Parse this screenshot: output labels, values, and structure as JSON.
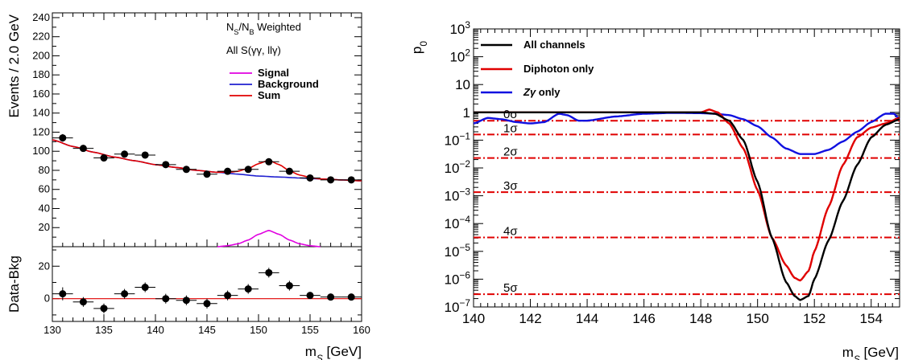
{
  "chart_data": [
    {
      "type": "scatter",
      "panel": "main",
      "info_lines": [
        "N_S/N_B Weighted",
        "All S(γγ, llγ)"
      ],
      "ylabel": "Events / 2.0 GeV",
      "xlabel": "",
      "xlim": [
        130,
        160
      ],
      "ylim": [
        0,
        245
      ],
      "yticks": [
        "20",
        "40",
        "60",
        "80",
        "100",
        "120",
        "140",
        "160",
        "180",
        "200",
        "220",
        "240"
      ],
      "legend_placement": "top-right",
      "series": [
        {
          "name": "Signal",
          "color": "#e000e0"
        },
        {
          "name": "Background",
          "color": "#2020d0"
        },
        {
          "name": "Sum",
          "color": "#e00000"
        }
      ],
      "data_points": {
        "x": [
          131,
          133,
          135,
          137,
          139,
          141,
          143,
          145,
          147,
          149,
          151,
          153,
          155,
          157,
          159
        ],
        "y": [
          114,
          103,
          93,
          97,
          96,
          86,
          81,
          76,
          79,
          81,
          89,
          79,
          72,
          70,
          70
        ],
        "err": [
          4,
          3,
          3,
          3,
          3,
          3,
          3,
          3,
          3,
          3,
          3,
          3,
          2,
          2,
          2
        ]
      },
      "background_curve": {
        "x": [
          130,
          132,
          134,
          136,
          138,
          140,
          142,
          144,
          146,
          148,
          150,
          152,
          154,
          156,
          158,
          160
        ],
        "y": [
          112,
          105,
          99,
          94,
          90,
          86,
          83,
          80,
          78,
          76,
          74,
          73,
          72,
          71,
          70,
          69
        ]
      },
      "signal_curve": {
        "x": [
          146,
          147,
          148,
          149,
          150,
          151,
          152,
          153,
          154,
          155,
          156
        ],
        "y": [
          0,
          1,
          3,
          7,
          13,
          17,
          13,
          7,
          3,
          1,
          0
        ]
      }
    },
    {
      "type": "scatter",
      "panel": "residual",
      "ylabel": "Data-Bkg",
      "xlabel": "m_S [GeV]",
      "xlim": [
        130,
        160
      ],
      "ylim": [
        -14,
        32
      ],
      "xticks": [
        "130",
        "135",
        "140",
        "145",
        "150",
        "155",
        "160"
      ],
      "yticks": [
        "0",
        "20"
      ],
      "x": [
        131,
        133,
        135,
        137,
        139,
        141,
        143,
        145,
        147,
        149,
        151,
        153,
        155,
        157,
        159
      ],
      "y": [
        3,
        -2,
        -6,
        3,
        7,
        0,
        -1,
        -3,
        2,
        6,
        16,
        8,
        2,
        1,
        1
      ],
      "err": [
        4,
        3,
        3,
        3,
        3,
        3,
        3,
        3,
        3,
        3,
        3,
        3,
        2,
        2,
        2
      ]
    },
    {
      "type": "line",
      "panel": "p0",
      "ylabel": "p_0",
      "xlabel": "m_S [GeV]",
      "xlim": [
        140,
        155
      ],
      "ylim_log10": [
        -7,
        3
      ],
      "scale": "log",
      "xticks": [
        "140",
        "142",
        "144",
        "146",
        "148",
        "150",
        "152",
        "154"
      ],
      "yticks": [
        {
          "base": "10",
          "exp": "3",
          "v": 3
        },
        {
          "base": "10",
          "exp": "2",
          "v": 2
        },
        {
          "base": "10",
          "exp": "",
          "v": 1
        },
        {
          "base": "1",
          "exp": "",
          "v": 0
        },
        {
          "base": "10",
          "exp": "−1",
          "v": -1
        },
        {
          "base": "10",
          "exp": "−2",
          "v": -2
        },
        {
          "base": "10",
          "exp": "−3",
          "v": -3
        },
        {
          "base": "10",
          "exp": "−4",
          "v": -4
        },
        {
          "base": "10",
          "exp": "−5",
          "v": -5
        },
        {
          "base": "10",
          "exp": "−6",
          "v": -6
        },
        {
          "base": "10",
          "exp": "−7",
          "v": -7
        }
      ],
      "legend_placement": "top-left",
      "sigma_lines": [
        {
          "label": "0σ",
          "p0": 0.5
        },
        {
          "label": "1σ",
          "p0": 0.159
        },
        {
          "label": "2σ",
          "p0": 0.0228
        },
        {
          "label": "3σ",
          "p0": 0.00135
        },
        {
          "label": "4σ",
          "p0": 3.17e-05
        },
        {
          "label": "5σ",
          "p0": 2.87e-07
        }
      ],
      "series": [
        {
          "name": "All channels",
          "color": "#000000",
          "x": [
            140,
            141,
            143,
            145,
            147,
            148,
            148.5,
            149,
            149.5,
            150,
            150.5,
            151,
            151.3,
            151.5,
            151.8,
            152,
            152.5,
            153,
            153.5,
            154,
            154.5,
            155
          ],
          "log10": [
            0,
            0,
            0,
            0,
            0,
            0,
            -0.05,
            -0.3,
            -1.0,
            -2.5,
            -4.5,
            -6.1,
            -6.6,
            -6.75,
            -6.6,
            -6.0,
            -4.6,
            -3.2,
            -1.9,
            -0.9,
            -0.45,
            -0.25
          ]
        },
        {
          "name": "Diphoton only",
          "color": "#e00000",
          "x": [
            140,
            141,
            143,
            145,
            147,
            148,
            148.3,
            148.6,
            149,
            149.5,
            150,
            150.5,
            151,
            151.3,
            151.5,
            151.8,
            152,
            152.5,
            153,
            153.5,
            154,
            154.5,
            155
          ],
          "log10": [
            0,
            0,
            0,
            0,
            0,
            0,
            0.1,
            0,
            -0.4,
            -1.3,
            -2.8,
            -4.5,
            -5.5,
            -5.95,
            -6.05,
            -5.7,
            -5.0,
            -3.4,
            -1.9,
            -0.9,
            -0.55,
            -0.4,
            -0.2
          ]
        },
        {
          "name": "Zγ only",
          "color": "#1010e0",
          "x": [
            140,
            140.5,
            141,
            141.5,
            142,
            142.5,
            143,
            143.3,
            143.7,
            144,
            145,
            146,
            147,
            148,
            148.5,
            149,
            149.5,
            150,
            150.5,
            151,
            151.5,
            152,
            152.5,
            153,
            153.5,
            154,
            154.5,
            154.8,
            155
          ],
          "log10": [
            -0.4,
            -0.2,
            -0.25,
            -0.35,
            -0.4,
            -0.35,
            -0.05,
            -0.1,
            -0.3,
            -0.3,
            -0.15,
            -0.05,
            -0.02,
            -0.03,
            -0.05,
            -0.1,
            -0.25,
            -0.5,
            -0.9,
            -1.3,
            -1.5,
            -1.5,
            -1.35,
            -1.05,
            -0.7,
            -0.35,
            -0.05,
            -0.05,
            -0.25
          ]
        }
      ]
    }
  ]
}
